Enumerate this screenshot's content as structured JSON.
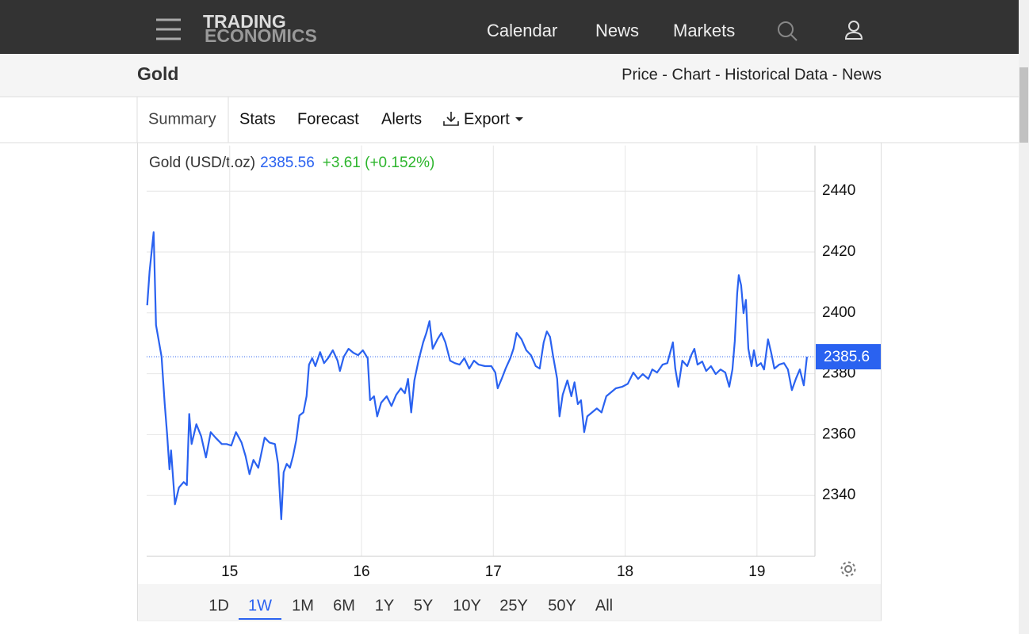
{
  "header": {
    "logo": [
      "TRADING",
      "ECONOMICS"
    ],
    "nav": [
      "Calendar",
      "News",
      "Markets"
    ]
  },
  "subheader": {
    "title": "Gold",
    "links": "Price - Chart - Historical Data - News"
  },
  "tabs": [
    "Summary",
    "Stats",
    "Forecast",
    "Alerts",
    "Export"
  ],
  "quote": {
    "name": "Gold (USD/t.oz)",
    "price": "2385.56",
    "change": "+3.61 (+0.152%)"
  },
  "chart_data": {
    "type": "line",
    "color": "#2a62f0",
    "x": [
      14.374,
      14.392,
      14.423,
      14.441,
      14.483,
      14.507,
      14.525,
      14.543,
      14.555,
      14.585,
      14.615,
      14.651,
      14.675,
      14.693,
      14.711,
      14.747,
      14.783,
      14.82,
      14.856,
      14.892,
      14.94,
      14.976,
      15.012,
      15.048,
      15.09,
      15.12,
      15.15,
      15.18,
      15.217,
      15.265,
      15.301,
      15.343,
      15.367,
      15.391,
      15.409,
      15.433,
      15.457,
      15.481,
      15.505,
      15.529,
      15.559,
      15.583,
      15.602,
      15.626,
      15.65,
      15.686,
      15.716,
      15.746,
      15.782,
      15.818,
      15.836,
      15.866,
      15.902,
      15.938,
      15.974,
      16.01,
      16.047,
      16.065,
      16.095,
      16.119,
      16.149,
      16.191,
      16.227,
      16.263,
      16.299,
      16.329,
      16.353,
      16.377,
      16.401,
      16.432,
      16.468,
      16.492,
      16.516,
      16.54,
      16.576,
      16.606,
      16.636,
      16.672,
      16.708,
      16.744,
      16.78,
      16.817,
      16.853,
      16.889,
      16.937,
      16.985,
      17.015,
      17.033,
      17.063,
      17.093,
      17.129,
      17.153,
      17.177,
      17.214,
      17.25,
      17.286,
      17.322,
      17.352,
      17.382,
      17.406,
      17.43,
      17.454,
      17.484,
      17.502,
      17.526,
      17.562,
      17.592,
      17.616,
      17.641,
      17.665,
      17.689,
      17.713,
      17.749,
      17.785,
      17.821,
      17.857,
      17.893,
      17.929,
      17.977,
      18.02,
      18.062,
      18.098,
      18.134,
      18.176,
      18.206,
      18.242,
      18.284,
      18.32,
      18.362,
      18.38,
      18.404,
      18.434,
      18.471,
      18.501,
      18.525,
      18.549,
      18.585,
      18.615,
      18.651,
      18.687,
      18.724,
      18.76,
      18.79,
      18.814,
      18.832,
      18.85,
      18.862,
      18.88,
      18.898,
      18.916,
      18.935,
      18.959,
      18.977,
      19.0,
      19.03,
      19.054,
      19.084,
      19.108,
      19.132,
      19.168,
      19.205,
      19.235,
      19.265,
      19.295,
      19.325,
      19.355,
      19.379
    ],
    "values": [
      2402.5,
      2413.7,
      2426.5,
      2396.0,
      2385.6,
      2370.0,
      2360.1,
      2348.6,
      2354.8,
      2337.1,
      2342.6,
      2344.4,
      2343.4,
      2366.8,
      2356.9,
      2363.4,
      2359.5,
      2352.5,
      2360.8,
      2359.0,
      2356.9,
      2356.9,
      2356.4,
      2360.8,
      2357.4,
      2353.0,
      2347.0,
      2351.7,
      2349.1,
      2359.0,
      2357.4,
      2356.9,
      2350.4,
      2332.2,
      2347.6,
      2350.4,
      2349.1,
      2353.0,
      2358.2,
      2366.3,
      2367.3,
      2372.6,
      2383.0,
      2385.1,
      2382.5,
      2387.1,
      2383.5,
      2385.1,
      2387.7,
      2384.3,
      2380.9,
      2385.6,
      2388.2,
      2386.9,
      2386.1,
      2387.7,
      2385.1,
      2371.3,
      2372.6,
      2366.0,
      2370.5,
      2372.6,
      2369.4,
      2373.1,
      2375.2,
      2373.6,
      2378.3,
      2367.3,
      2377.8,
      2384.3,
      2390.3,
      2393.4,
      2397.3,
      2388.2,
      2391.3,
      2393.4,
      2390.3,
      2384.3,
      2383.5,
      2383.0,
      2385.1,
      2381.7,
      2384.3,
      2383.0,
      2382.5,
      2382.5,
      2380.4,
      2375.2,
      2378.3,
      2381.7,
      2385.1,
      2388.2,
      2393.4,
      2391.3,
      2387.7,
      2386.1,
      2382.5,
      2381.7,
      2390.3,
      2393.9,
      2392.1,
      2385.6,
      2378.3,
      2366.0,
      2373.1,
      2377.8,
      2372.6,
      2377.2,
      2370.0,
      2371.3,
      2360.8,
      2366.0,
      2367.3,
      2368.6,
      2367.3,
      2372.6,
      2373.9,
      2375.2,
      2375.7,
      2376.7,
      2380.4,
      2378.3,
      2379.9,
      2378.3,
      2381.4,
      2380.4,
      2383.0,
      2383.5,
      2390.3,
      2381.7,
      2375.7,
      2384.3,
      2382.5,
      2386.1,
      2388.2,
      2383.0,
      2384.0,
      2380.9,
      2382.5,
      2379.9,
      2381.4,
      2380.4,
      2375.7,
      2381.4,
      2390.8,
      2406.4,
      2412.4,
      2409.0,
      2399.9,
      2404.3,
      2388.2,
      2382.5,
      2387.7,
      2382.5,
      2383.5,
      2381.4,
      2391.3,
      2386.9,
      2381.7,
      2383.0,
      2383.5,
      2381.4,
      2374.6,
      2378.3,
      2381.4,
      2376.2,
      2385.6
    ],
    "xlim": [
      14.37,
      19.44
    ],
    "ylim": [
      2320,
      2455
    ],
    "xticks": [
      15,
      16,
      17,
      18,
      19
    ],
    "yticks": [
      2340,
      2360,
      2380,
      2400,
      2420,
      2440
    ],
    "grid": true,
    "last_value": 2385.6
  },
  "ranges": [
    "1D",
    "1W",
    "1M",
    "6M",
    "1Y",
    "5Y",
    "10Y",
    "25Y",
    "50Y",
    "All"
  ],
  "active_range": 1
}
